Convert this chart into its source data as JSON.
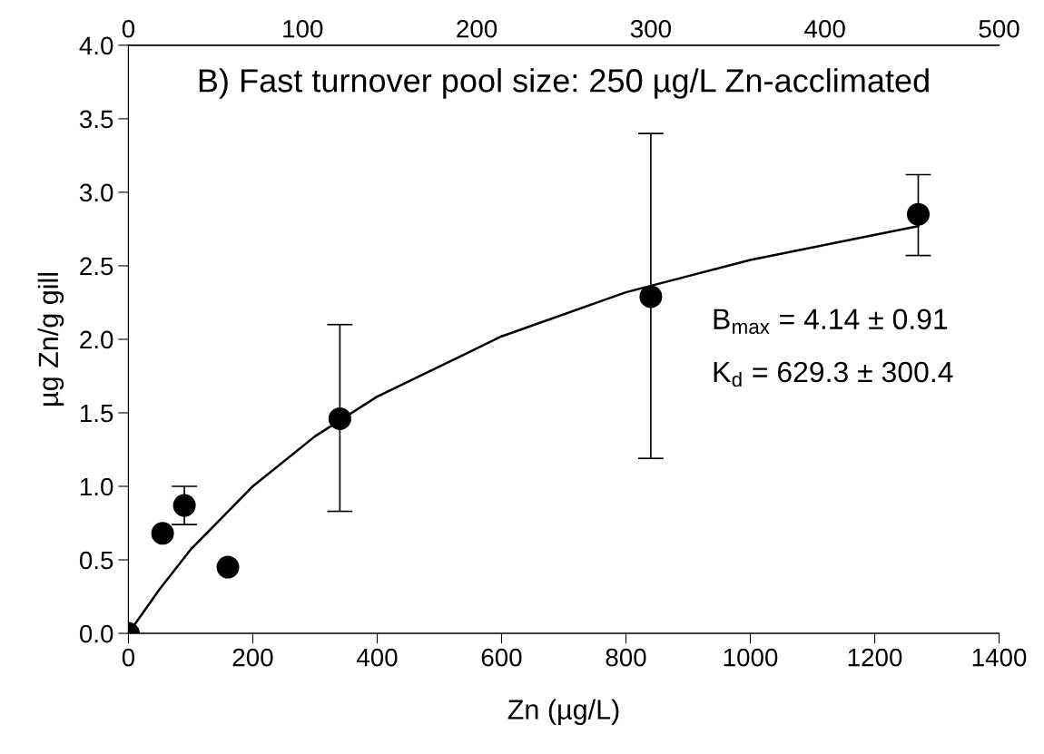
{
  "chart_data": {
    "type": "scatter",
    "title": "B) Fast turnover pool size: 250 µg/L Zn-acclimated",
    "xlabel": "Zn (µg/L)",
    "ylabel": "µg Zn/g gill",
    "annotations": [
      "B$_{max}$ = 4.14 ± 0.91",
      "K$_{d}$ = 629.3 ± 300.4"
    ],
    "series": [
      {
        "type": "scatter",
        "color": "#000000",
        "marker": "circle",
        "x": [
          0,
          55,
          90,
          160,
          340,
          840,
          1270
        ],
        "values": [
          0,
          0.68,
          0.87,
          0.45,
          1.46,
          2.29,
          2.85
        ],
        "errors": [
          null,
          null,
          [
            0.74,
            1.0
          ],
          null,
          [
            0.83,
            2.1
          ],
          [
            1.19,
            3.4
          ],
          [
            2.57,
            3.12
          ]
        ]
      },
      {
        "type": "line",
        "color": "#000000",
        "line_style": "solid",
        "x": [
          0,
          50,
          100,
          200,
          300,
          400,
          600,
          800,
          1000,
          1270
        ],
        "values": [
          0,
          0.3,
          0.57,
          1.0,
          1.34,
          1.61,
          2.02,
          2.32,
          2.54,
          2.77
        ]
      }
    ],
    "xlim": [
      0,
      1400
    ],
    "xticks": [
      0,
      200,
      400,
      600,
      800,
      1000,
      1200,
      1400
    ],
    "ylim": [
      0,
      4.0
    ],
    "yticks": [
      {
        "value": 0,
        "label": "0.0"
      },
      {
        "value": 0.5,
        "label": "0.5"
      },
      {
        "value": 1,
        "label": "1.0"
      },
      {
        "value": 1.5,
        "label": "1.5"
      },
      {
        "value": 2,
        "label": "2.0"
      },
      {
        "value": 2.5,
        "label": "2.5"
      },
      {
        "value": 3,
        "label": "3.0"
      },
      {
        "value": 3.5,
        "label": "3.5"
      },
      {
        "value": 4,
        "label": "4.0"
      }
    ],
    "x2lim": [
      0,
      500
    ],
    "x2ticks": [
      0,
      100,
      200,
      300,
      400,
      500
    ],
    "grid": false,
    "legend": false
  }
}
